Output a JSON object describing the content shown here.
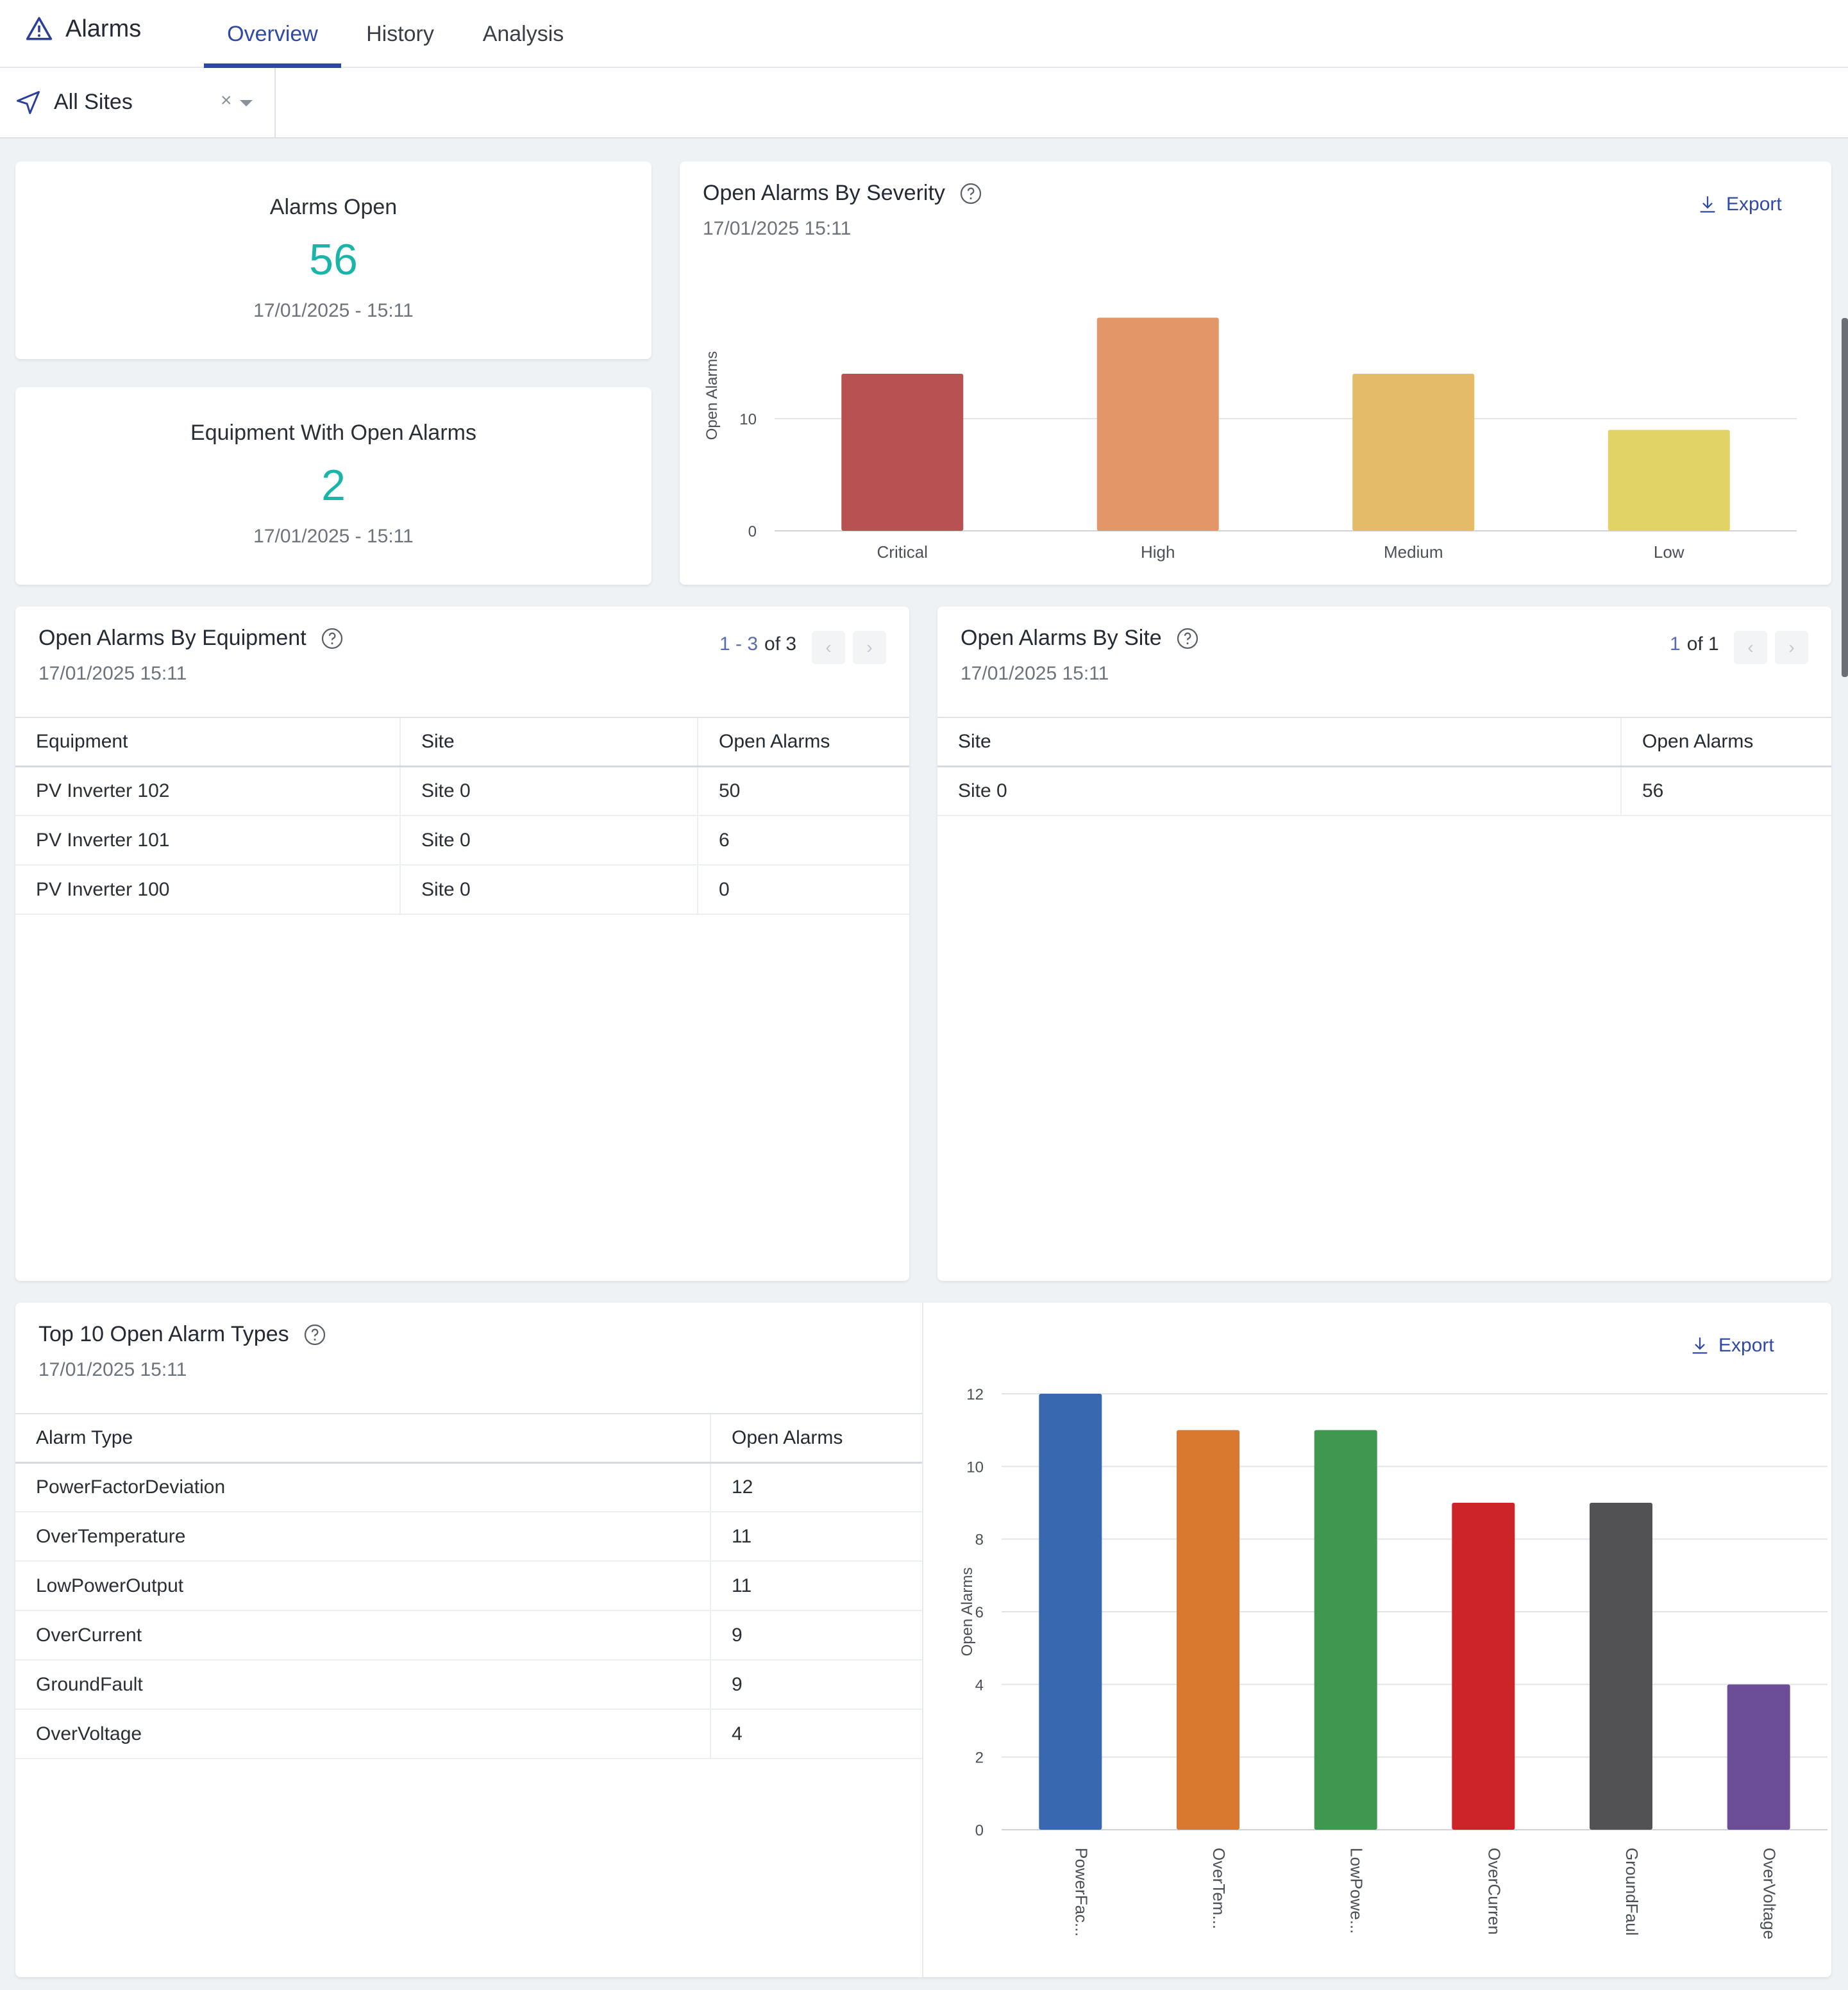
{
  "header": {
    "app_title": "Alarms",
    "tabs": [
      {
        "label": "Overview",
        "active": true
      },
      {
        "label": "History",
        "active": false
      },
      {
        "label": "Analysis",
        "active": false
      }
    ]
  },
  "filter": {
    "site_label": "All Sites",
    "clear_symbol": "×"
  },
  "kpis": {
    "alarms_open": {
      "title": "Alarms Open",
      "value": "56",
      "time": "17/01/2025 - 15:11"
    },
    "equipment_open": {
      "title": "Equipment With Open Alarms",
      "value": "2",
      "time": "17/01/2025 - 15:11"
    }
  },
  "severity_panel": {
    "title": "Open Alarms By Severity",
    "time": "17/01/2025 15:11",
    "export_label": "Export"
  },
  "equipment_panel": {
    "title": "Open Alarms By Equipment",
    "time": "17/01/2025 15:11",
    "pager": {
      "range": "1 - 3",
      "total": "of 3"
    },
    "columns": [
      "Equipment",
      "Site",
      "Open Alarms"
    ],
    "rows": [
      [
        "PV Inverter 102",
        "Site 0",
        "50"
      ],
      [
        "PV Inverter 101",
        "Site 0",
        "6"
      ],
      [
        "PV Inverter 100",
        "Site 0",
        "0"
      ]
    ]
  },
  "site_panel": {
    "title": "Open Alarms By Site",
    "time": "17/01/2025 15:11",
    "pager": {
      "range": "1",
      "total": "of 1"
    },
    "columns": [
      "Site",
      "Open Alarms"
    ],
    "rows": [
      [
        "Site 0",
        "56"
      ]
    ]
  },
  "types_panel": {
    "title": "Top 10 Open Alarm Types",
    "time": "17/01/2025 15:11",
    "export_label": "Export",
    "columns": [
      "Alarm Type",
      "Open Alarms"
    ],
    "rows": [
      [
        "PowerFactorDeviation",
        "12"
      ],
      [
        "OverTemperature",
        "11"
      ],
      [
        "LowPowerOutput",
        "11"
      ],
      [
        "OverCurrent",
        "9"
      ],
      [
        "GroundFault",
        "9"
      ],
      [
        "OverVoltage",
        "4"
      ]
    ]
  },
  "icons": {
    "app": "warning-triangle-icon",
    "site": "navigation-arrow-icon",
    "help": "help-circle-icon",
    "export": "download-icon",
    "prev": "chevron-left-icon",
    "next": "chevron-right-icon"
  },
  "chart_data": [
    {
      "type": "bar",
      "ylabel": "Open Alarms",
      "categories": [
        "Critical",
        "High",
        "Medium",
        "Low"
      ],
      "values": [
        14,
        19,
        14,
        9
      ],
      "colors": [
        "#b85151",
        "#e39668",
        "#e4bc69",
        "#e2d366"
      ],
      "yticks": [
        0,
        10
      ],
      "ylim": [
        0,
        20
      ],
      "grid": true
    },
    {
      "type": "bar",
      "ylabel": "Open Alarms",
      "categories": [
        "PowerFac...",
        "OverTem...",
        "LowPowe...",
        "OverCurren",
        "GroundFaul",
        "OverVoltage"
      ],
      "values": [
        12,
        11,
        11,
        9,
        9,
        4
      ],
      "colors": [
        "#3868b0",
        "#d8792f",
        "#3f9750",
        "#cd2429",
        "#525154",
        "#6c4e97"
      ],
      "yticks": [
        0,
        2,
        4,
        6,
        8,
        10,
        12
      ],
      "ylim": [
        0,
        12
      ],
      "grid": true
    }
  ]
}
